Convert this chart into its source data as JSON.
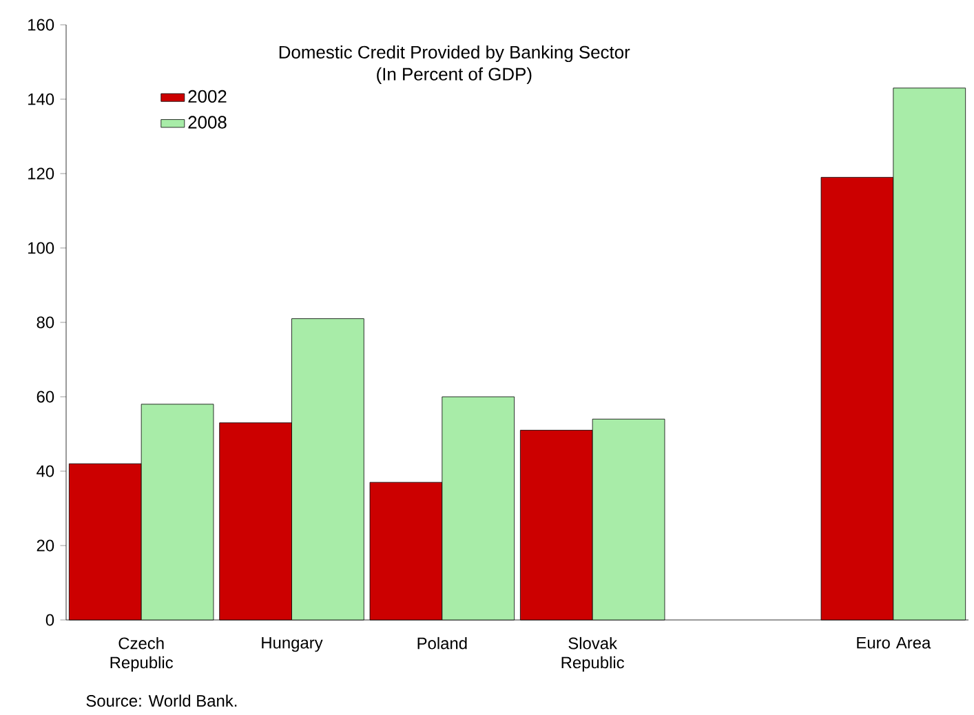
{
  "chart_data": {
    "type": "bar",
    "title": "Domestic Credit Provided by Banking Sector",
    "subtitle": "(In Percent of GDP)",
    "categories": [
      "Czech Republic",
      "Hungary",
      "Poland",
      "Slovak Republic",
      null,
      "Euro Area"
    ],
    "series": [
      {
        "name": "2002",
        "color": "#cc0000",
        "values": [
          42,
          53,
          37,
          51,
          null,
          119
        ]
      },
      {
        "name": "2008",
        "color": "#a8eca8",
        "values": [
          58,
          81,
          60,
          54,
          null,
          143
        ]
      }
    ],
    "ylim": [
      0,
      160
    ],
    "yticks": [
      0,
      20,
      40,
      60,
      80,
      100,
      120,
      140,
      160
    ],
    "legend": "top left",
    "grid": false,
    "annotations": [
      "Source: World Bank."
    ]
  }
}
